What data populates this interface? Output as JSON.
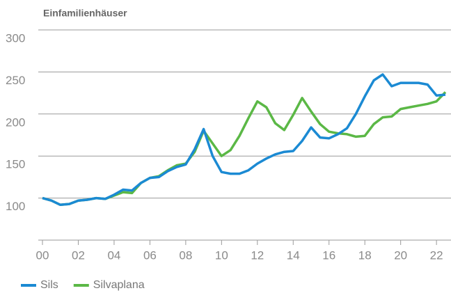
{
  "chart_data": {
    "type": "line",
    "title": "Einfamilienhäuser",
    "x": [
      2000,
      2000.5,
      2001,
      2001.5,
      2002,
      2002.5,
      2003,
      2003.5,
      2004,
      2004.5,
      2005,
      2005.5,
      2006,
      2006.5,
      2007,
      2007.5,
      2008,
      2008.5,
      2009,
      2009.5,
      2010,
      2010.5,
      2011,
      2011.5,
      2012,
      2012.5,
      2013,
      2013.5,
      2014,
      2014.5,
      2015,
      2015.5,
      2016,
      2016.5,
      2017,
      2017.5,
      2018,
      2018.5,
      2019,
      2019.5,
      2020,
      2020.5,
      2021,
      2021.5,
      2022,
      2022.5
    ],
    "series": [
      {
        "name": "Sils",
        "color": "#1b8ad3",
        "values": [
          100,
          97,
          92,
          93,
          97,
          98,
          100,
          99,
          104,
          110,
          109,
          118,
          124,
          125,
          132,
          137,
          140,
          158,
          182,
          150,
          131,
          129,
          129,
          133,
          141,
          147,
          152,
          155,
          156,
          168,
          184,
          172,
          171,
          176,
          183,
          200,
          221,
          240,
          247,
          233,
          237,
          237,
          237,
          235,
          222,
          223
        ]
      },
      {
        "name": "Silvaplana",
        "color": "#5bb846",
        "values": [
          100,
          97,
          92,
          93,
          97,
          98,
          100,
          99,
          103,
          107,
          106,
          118,
          124,
          126,
          133,
          139,
          141,
          155,
          180,
          165,
          150,
          157,
          174,
          195,
          215,
          208,
          189,
          181,
          199,
          219,
          203,
          188,
          179,
          177,
          176,
          173,
          174,
          188,
          196,
          197,
          206,
          208,
          210,
          212,
          215,
          226
        ]
      }
    ],
    "xlim": [
      2000,
      2022.5
    ],
    "xticks": [
      {
        "value": 2000,
        "label": "00"
      },
      {
        "value": 2002,
        "label": "02"
      },
      {
        "value": 2004,
        "label": "04"
      },
      {
        "value": 2006,
        "label": "06"
      },
      {
        "value": 2008,
        "label": "08"
      },
      {
        "value": 2010,
        "label": "10"
      },
      {
        "value": 2012,
        "label": "12"
      },
      {
        "value": 2014,
        "label": "14"
      },
      {
        "value": 2016,
        "label": "16"
      },
      {
        "value": 2018,
        "label": "18"
      },
      {
        "value": 2020,
        "label": "20"
      },
      {
        "value": 2022,
        "label": "22"
      }
    ],
    "ylim": [
      50,
      300
    ],
    "yticks": [
      100,
      150,
      200,
      250,
      300
    ],
    "grid": true,
    "legend": "bottom-left"
  }
}
